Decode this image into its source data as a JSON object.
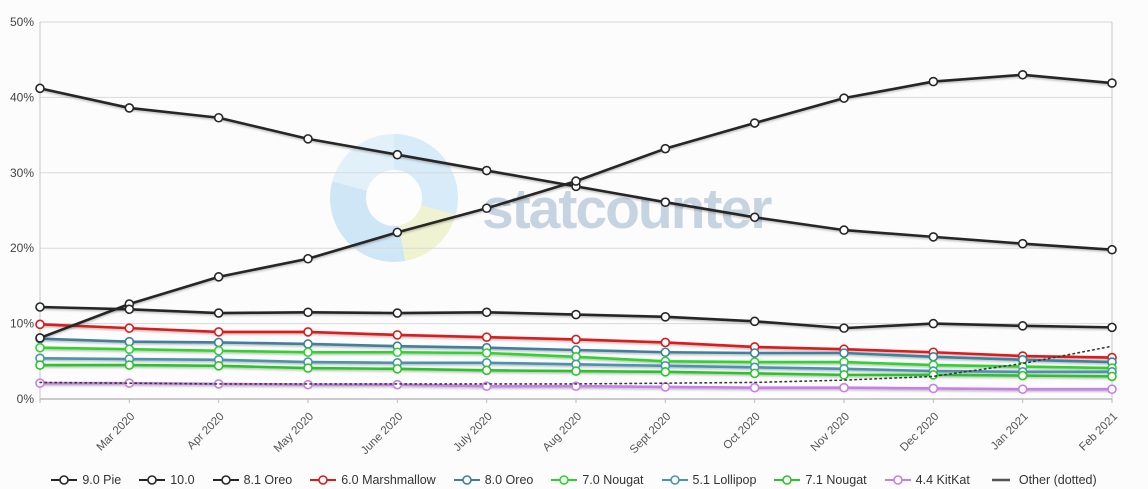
{
  "watermark": {
    "text": "statcounter"
  },
  "chart_data": {
    "type": "line",
    "title": "",
    "xlabel": "",
    "ylabel": "",
    "ylim": [
      0,
      50
    ],
    "yticks": [
      "0%",
      "10%",
      "20%",
      "30%",
      "40%",
      "50%"
    ],
    "grid": true,
    "legend_position": "bottom",
    "categories": [
      "",
      "Mar 2020",
      "Apr 2020",
      "May 2020",
      "June 2020",
      "July 2020",
      "Aug 2020",
      "Sept 2020",
      "Oct 2020",
      "Nov 2020",
      "Dec 2020",
      "Jan 2021",
      "Feb 2021"
    ],
    "series": [
      {
        "name": "9.0 Pie",
        "color": "#262626",
        "dashed": false,
        "marker": true,
        "values": [
          41.2,
          38.6,
          37.3,
          34.5,
          32.4,
          30.3,
          28.2,
          26.1,
          24.1,
          22.4,
          21.5,
          20.6,
          19.8
        ]
      },
      {
        "name": "10.0",
        "color": "#262626",
        "dashed": false,
        "marker": true,
        "values": [
          8.1,
          12.6,
          16.2,
          18.6,
          22.1,
          25.3,
          28.9,
          33.2,
          36.6,
          39.9,
          42.1,
          43.0,
          41.9
        ]
      },
      {
        "name": "8.1 Oreo",
        "color": "#262626",
        "dashed": false,
        "marker": true,
        "values": [
          12.2,
          11.9,
          11.4,
          11.5,
          11.4,
          11.5,
          11.2,
          10.9,
          10.3,
          9.4,
          10.0,
          9.7,
          9.5
        ]
      },
      {
        "name": "6.0 Marshmallow",
        "color": "#da1b1b",
        "dashed": false,
        "marker": true,
        "values": [
          9.9,
          9.4,
          8.9,
          8.9,
          8.5,
          8.2,
          7.9,
          7.5,
          6.9,
          6.6,
          6.2,
          5.7,
          5.5
        ]
      },
      {
        "name": "8.0 Oreo",
        "color": "#3f7f9d",
        "dashed": false,
        "marker": true,
        "values": [
          8.0,
          7.6,
          7.5,
          7.3,
          7.0,
          6.8,
          6.5,
          6.2,
          6.1,
          6.1,
          5.6,
          5.2,
          4.9
        ]
      },
      {
        "name": "7.0 Nougat",
        "color": "#2ed32e",
        "dashed": false,
        "marker": true,
        "values": [
          6.8,
          6.6,
          6.4,
          6.2,
          6.2,
          6.1,
          5.6,
          5.0,
          4.9,
          4.9,
          4.5,
          4.3,
          4.1
        ]
      },
      {
        "name": "5.1 Lollipop",
        "color": "#4a93ae",
        "dashed": false,
        "marker": true,
        "values": [
          5.4,
          5.3,
          5.2,
          4.9,
          4.8,
          4.8,
          4.6,
          4.4,
          4.2,
          4.0,
          3.7,
          3.6,
          3.6
        ]
      },
      {
        "name": "7.1 Nougat",
        "color": "#2bc42b",
        "dashed": false,
        "marker": true,
        "values": [
          4.5,
          4.5,
          4.4,
          4.1,
          4.0,
          3.8,
          3.7,
          3.6,
          3.4,
          3.2,
          3.2,
          3.1,
          3.0
        ]
      },
      {
        "name": "4.4 KitKat",
        "color": "#c77fe9",
        "dashed": false,
        "marker": true,
        "values": [
          2.1,
          2.1,
          2.0,
          1.9,
          1.9,
          1.7,
          1.7,
          1.6,
          1.5,
          1.5,
          1.4,
          1.3,
          1.3
        ]
      },
      {
        "name": "Other (dotted)",
        "color": "#3a3a3a",
        "dashed": true,
        "marker": false,
        "values": [
          2.2,
          2.1,
          2.0,
          2.0,
          2.0,
          2.0,
          2.0,
          2.1,
          2.2,
          2.5,
          3.0,
          4.7,
          7.0
        ]
      }
    ]
  }
}
